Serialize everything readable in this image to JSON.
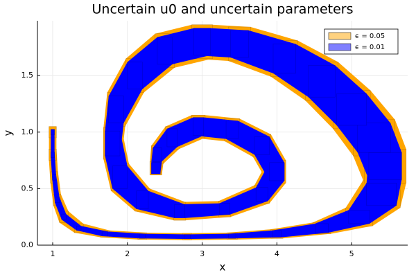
{
  "chart_data": {
    "type": "box-band",
    "title": "Uncertain u0 and uncertain parameters",
    "xlabel": "x",
    "ylabel": "y",
    "xlim": [
      0.796,
      5.75
    ],
    "ylim": [
      0,
      1.985
    ],
    "xticks": [
      1,
      2,
      3,
      4,
      5
    ],
    "yticks": [
      {
        "value": 0,
        "label": "0.0"
      },
      0.5,
      {
        "value": 1,
        "label": "1.0"
      },
      1.5
    ],
    "grid": true,
    "legend": "top-right",
    "series": [
      {
        "name": "ϵ = 0.05",
        "color": "#ffa500",
        "x": [
          1.0,
          1.0,
          1.02,
          1.06,
          1.15,
          1.35,
          1.7,
          2.2,
          2.8,
          3.4,
          4.0,
          4.6,
          5.1,
          5.4,
          5.45,
          5.3,
          5.0,
          4.6,
          4.1,
          3.5,
          3.0,
          2.5,
          2.1,
          1.85,
          1.8,
          1.9,
          2.2,
          2.7,
          3.3,
          3.8,
          4.0,
          3.8,
          3.4,
          2.95,
          2.6,
          2.4,
          2.38
        ],
        "y": [
          1.0,
          0.8,
          0.6,
          0.4,
          0.25,
          0.15,
          0.1,
          0.08,
          0.075,
          0.08,
          0.1,
          0.15,
          0.25,
          0.45,
          0.7,
          0.95,
          1.2,
          1.45,
          1.65,
          1.78,
          1.8,
          1.72,
          1.5,
          1.2,
          0.9,
          0.6,
          0.4,
          0.3,
          0.32,
          0.45,
          0.65,
          0.88,
          1.02,
          1.05,
          0.95,
          0.8,
          0.68
        ],
        "xerr": [
          0.05,
          0.05,
          0.05,
          0.05,
          0.06,
          0.06,
          0.06,
          0.06,
          0.06,
          0.07,
          0.08,
          0.12,
          0.18,
          0.25,
          0.28,
          0.28,
          0.25,
          0.22,
          0.18,
          0.15,
          0.14,
          0.13,
          0.12,
          0.12,
          0.12,
          0.12,
          0.1,
          0.08,
          0.08,
          0.1,
          0.12,
          0.12,
          0.1,
          0.09,
          0.09,
          0.08,
          0.08
        ],
        "yerr": [
          0.05,
          0.05,
          0.05,
          0.05,
          0.05,
          0.04,
          0.03,
          0.03,
          0.03,
          0.03,
          0.04,
          0.05,
          0.08,
          0.12,
          0.15,
          0.16,
          0.17,
          0.17,
          0.16,
          0.15,
          0.15,
          0.15,
          0.15,
          0.15,
          0.14,
          0.12,
          0.1,
          0.08,
          0.07,
          0.08,
          0.1,
          0.1,
          0.1,
          0.1,
          0.1,
          0.08,
          0.06
        ]
      },
      {
        "name": "ϵ = 0.01",
        "color": "#0000ff",
        "x": [
          1.0,
          1.0,
          1.02,
          1.06,
          1.15,
          1.35,
          1.7,
          2.2,
          2.8,
          3.4,
          4.0,
          4.6,
          5.1,
          5.4,
          5.45,
          5.3,
          5.0,
          4.6,
          4.1,
          3.5,
          3.0,
          2.5,
          2.1,
          1.85,
          1.8,
          1.9,
          2.2,
          2.7,
          3.3,
          3.8,
          4.0,
          3.8,
          3.4,
          2.95,
          2.6,
          2.4,
          2.38
        ],
        "y": [
          1.0,
          0.8,
          0.6,
          0.4,
          0.25,
          0.15,
          0.1,
          0.08,
          0.075,
          0.08,
          0.1,
          0.15,
          0.25,
          0.45,
          0.7,
          0.95,
          1.2,
          1.45,
          1.65,
          1.78,
          1.8,
          1.72,
          1.5,
          1.2,
          0.9,
          0.6,
          0.4,
          0.3,
          0.32,
          0.45,
          0.65,
          0.88,
          1.02,
          1.05,
          0.95,
          0.8,
          0.68
        ],
        "xerr": [
          0.025,
          0.025,
          0.025,
          0.03,
          0.03,
          0.03,
          0.04,
          0.04,
          0.04,
          0.05,
          0.06,
          0.09,
          0.14,
          0.2,
          0.22,
          0.22,
          0.2,
          0.18,
          0.15,
          0.12,
          0.11,
          0.1,
          0.1,
          0.1,
          0.1,
          0.1,
          0.08,
          0.07,
          0.07,
          0.08,
          0.1,
          0.1,
          0.08,
          0.07,
          0.07,
          0.06,
          0.06
        ],
        "yerr": [
          0.025,
          0.025,
          0.025,
          0.025,
          0.025,
          0.02,
          0.02,
          0.02,
          0.02,
          0.02,
          0.03,
          0.04,
          0.06,
          0.1,
          0.12,
          0.13,
          0.14,
          0.14,
          0.13,
          0.12,
          0.12,
          0.12,
          0.12,
          0.12,
          0.11,
          0.1,
          0.08,
          0.06,
          0.05,
          0.06,
          0.08,
          0.08,
          0.08,
          0.08,
          0.08,
          0.06,
          0.05
        ]
      }
    ]
  }
}
